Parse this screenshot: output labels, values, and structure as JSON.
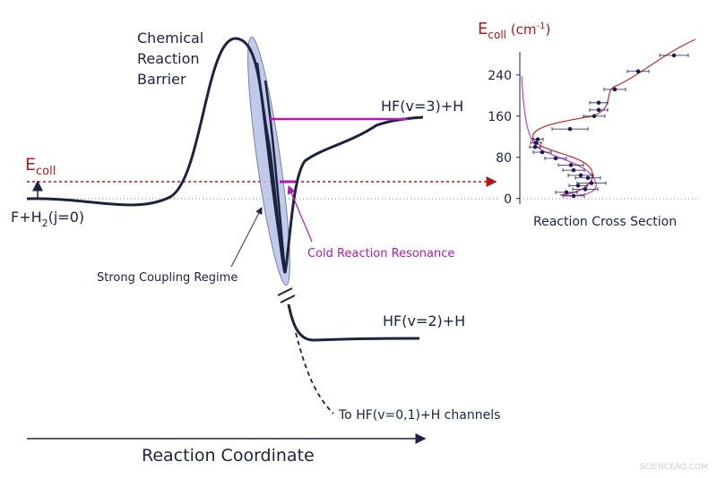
{
  "diagram": {
    "barrier_label": [
      "Chemical",
      "Reaction",
      "Barrier"
    ],
    "v3_label": "HF(v=3)+H",
    "e_coll_label": {
      "main": "E",
      "sub": "coll"
    },
    "reactant_label": {
      "a": "F+H",
      "sub": "2",
      "b": "(j=0)"
    },
    "coupling_label": "Strong Coupling Regime",
    "resonance_label": "Cold Reaction Resonance",
    "v2_label": "HF(v=2)+H",
    "channels_label": "To HF(v=0,1)+H channels",
    "axis_label": "Reaction Coordinate",
    "watermark": "SCIENCEAQ.COM"
  },
  "chart_data": {
    "type": "scatter",
    "title": {
      "main": "E",
      "sub": "coll",
      "unit_a": " (cm",
      "unit_sup": "-1",
      "unit_b": ")"
    },
    "x_label": "Reaction Cross Section",
    "ylim": [
      -10,
      290
    ],
    "xlim": [
      0,
      1
    ],
    "yticks": [
      0,
      80,
      160,
      240
    ],
    "x": [
      0.86,
      0.66,
      0.53,
      0.44,
      0.44,
      0.415,
      0.28,
      0.1,
      0.09,
      0.085,
      0.125,
      0.2,
      0.285,
      0.3,
      0.34,
      0.38,
      0.4,
      0.325,
      0.365,
      0.26,
      0.3
    ],
    "y": [
      278,
      247,
      212,
      186,
      172,
      160,
      135,
      115,
      108,
      100,
      90,
      78,
      65,
      55,
      45,
      40,
      30,
      25,
      18,
      12,
      5
    ],
    "xerr": [
      0.08,
      0.06,
      0.06,
      0.05,
      0.05,
      0.06,
      0.1,
      0.03,
      0.03,
      0.03,
      0.05,
      0.06,
      0.07,
      0.06,
      0.07,
      0.07,
      0.08,
      0.05,
      0.07,
      0.06,
      0.06
    ],
    "color": "#1a1a5e"
  }
}
